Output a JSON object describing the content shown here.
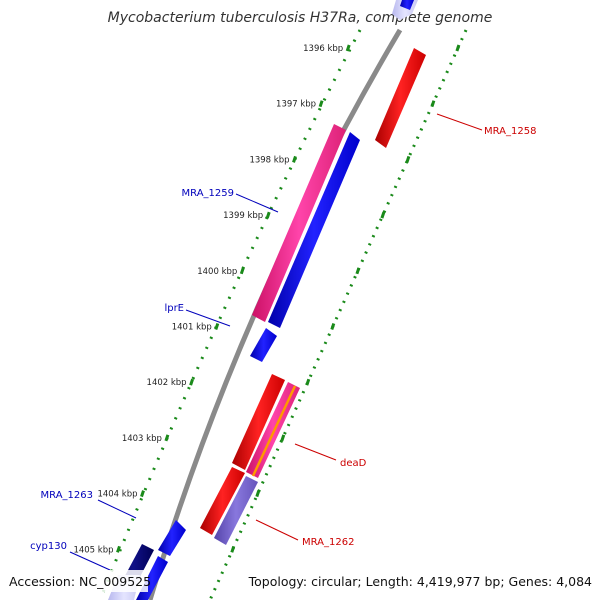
{
  "title": "Mycobacterium tuberculosis H37Ra, complete genome",
  "footer": {
    "accession": "Accession: NC_009525",
    "summary": "Topology: circular; Length: 4,419,977 bp; Genes: 4,084"
  },
  "ticks": [
    {
      "label": "1396 kbp",
      "kb": 1396
    },
    {
      "label": "1397 kbp",
      "kb": 1397
    },
    {
      "label": "1398 kbp",
      "kb": 1398
    },
    {
      "label": "1399 kbp",
      "kb": 1399
    },
    {
      "label": "1400 kbp",
      "kb": 1400
    },
    {
      "label": "1401 kbp",
      "kb": 1401
    },
    {
      "label": "1402 kbp",
      "kb": 1402
    },
    {
      "label": "1403 kbp",
      "kb": 1403
    },
    {
      "label": "1404 kbp",
      "kb": 1404
    },
    {
      "label": "1405 kbp",
      "kb": 1405
    }
  ],
  "colors": {
    "backbone": "#8a8a8a",
    "tick_dots": "#1a8a1a",
    "forward_label": "#cc0000",
    "reverse_label": "#0000bb",
    "red_gene": "#ee1111",
    "blue_gene": "#1111ee",
    "pink_gene": "#ee2288",
    "purple_gene": "#7766cc",
    "navy_gene": "#000066",
    "pale_gene": "#ccccf5",
    "orange_stripe": "#ff9900"
  },
  "labels": [
    {
      "text": "MRA_1258",
      "side": "right"
    },
    {
      "text": "MRA_1259",
      "side": "left"
    },
    {
      "text": "lprE",
      "side": "left"
    },
    {
      "text": "deaD",
      "side": "right"
    },
    {
      "text": "MRA_1262",
      "side": "right"
    },
    {
      "text": "MRA_1263",
      "side": "left"
    },
    {
      "text": "cyp130",
      "side": "left"
    }
  ]
}
